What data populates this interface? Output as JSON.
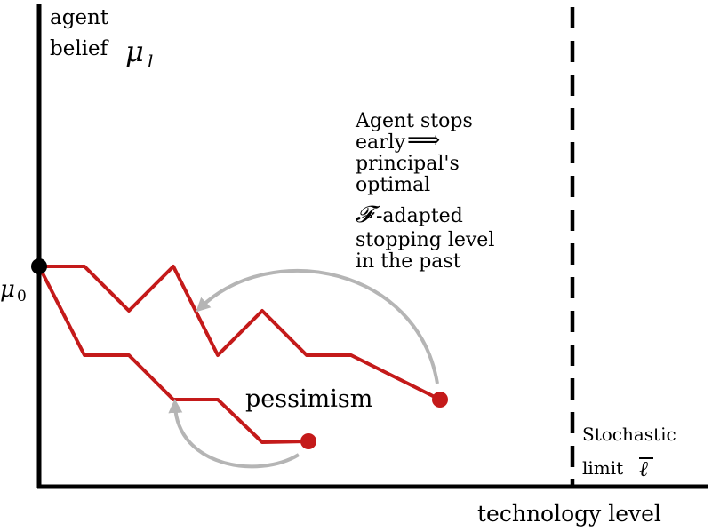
{
  "labels": {
    "y_axis_line1": "agent",
    "y_axis_line2": "belief",
    "y_axis_symbol": "μ",
    "y_axis_subscript": "l",
    "origin_symbol": "μ",
    "origin_subscript": "0",
    "x_axis": "technology level",
    "pessimism": "pessimism",
    "limit_line1": "Stochastic",
    "limit_line2": "limit",
    "limit_symbol": "ℓ",
    "annotation_line1": "Agent stops",
    "annotation_line2": "early",
    "annotation_arrow": "⟹",
    "annotation_line3": "principal's",
    "annotation_line4": "optimal",
    "annotation_symbol": "𝓕",
    "annotation_line5": "-adapted",
    "annotation_line6": "stopping level",
    "annotation_line7": "in the past"
  },
  "colors": {
    "path": "#c41a1a",
    "arrow": "#b5b5b5",
    "axis": "#000000",
    "origin_dot": "#000000"
  }
}
